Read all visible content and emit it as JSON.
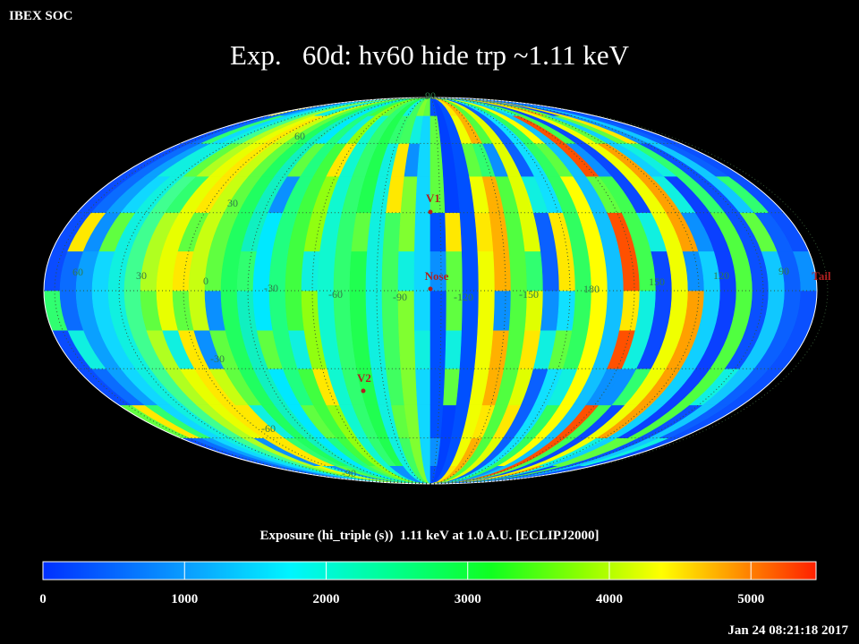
{
  "header": "IBEX SOC",
  "title": "Exp.   60d: hv60 hide trp ~1.11 keV",
  "map": {
    "grid_labels": [
      "90",
      "60",
      "30",
      "60",
      "30",
      "0",
      "-30",
      "-60",
      "-90",
      "-120",
      "-150",
      "180",
      "150",
      "120",
      "90",
      "-30",
      "-60",
      "-90"
    ],
    "markers": [
      {
        "label": "V1"
      },
      {
        "label": "Nose"
      },
      {
        "label": "V2"
      },
      {
        "label": "Tail"
      }
    ]
  },
  "colorbar": {
    "label": "Exposure (hi_triple (s))  1.11 keV at 1.0 A.U. [ECLIPJ2000]",
    "range": [
      0,
      5460
    ],
    "ticks": [
      0,
      1000,
      2000,
      3000,
      4000,
      5000
    ]
  },
  "timestamp": "Jan 24 08:21:18 2017"
}
